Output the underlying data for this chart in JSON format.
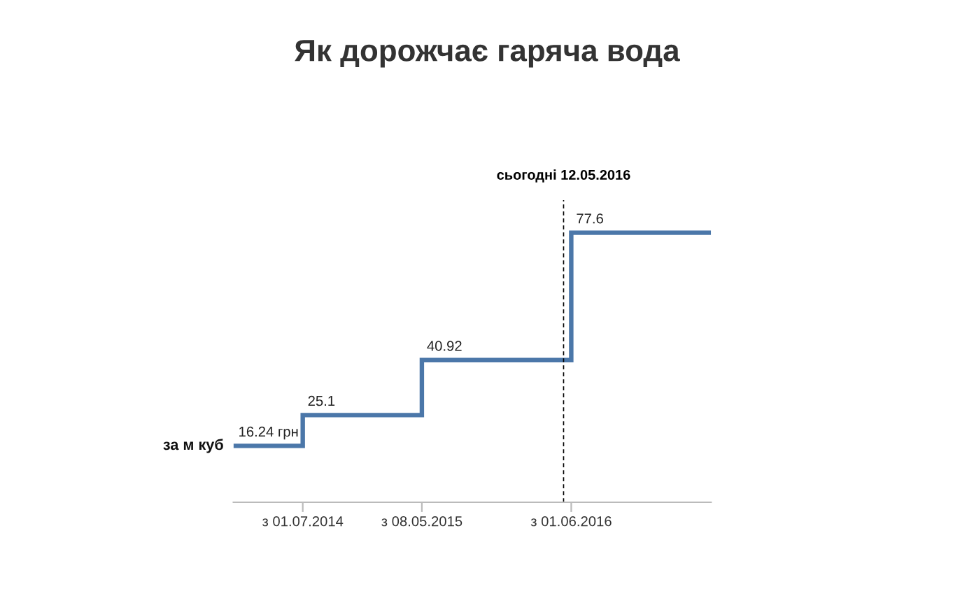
{
  "chart_data": {
    "type": "step",
    "title": "Як дорожчає гаряча вода",
    "x": [
      "2014-01-01",
      "2014-07-01",
      "2015-05-08",
      "2016-06-01",
      "2017-06-01"
    ],
    "values": [
      16.24,
      25.1,
      40.92,
      77.6,
      77.6
    ],
    "value_labels": [
      "16.24 грн",
      "25.1",
      "40.92",
      "77.6",
      null
    ],
    "color": "#4b77a9",
    "xlim": [
      "2014-01-01",
      "2017-06-01"
    ],
    "ylim": [
      0,
      87
    ],
    "xticks": [
      {
        "value": "2014-07-01",
        "label": "з 01.07.2014"
      },
      {
        "value": "2015-05-08",
        "label": "з 08.05.2015"
      },
      {
        "value": "2016-06-01",
        "label": "з 01.06.2016"
      }
    ],
    "tick_labels": "x",
    "ref_lines": [
      {
        "axis": "x",
        "value": "2016-05-12",
        "label": "сьогодні 12.05.2016",
        "color": "#000000",
        "line_style": "dashed"
      }
    ],
    "annotations": [
      {
        "text": "за м куб",
        "x": "2014-01-01",
        "y": 16.24
      }
    ]
  }
}
